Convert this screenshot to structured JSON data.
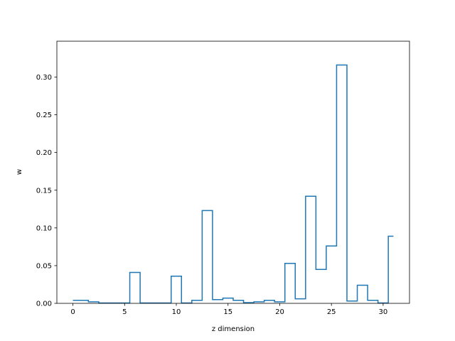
{
  "chart_data": {
    "type": "line",
    "drawstyle": "steps-mid",
    "xlabel": "z dimension",
    "ylabel": "w",
    "xlim": [
      -1.55,
      32.55
    ],
    "ylim": [
      0,
      0.3475
    ],
    "xticks": [
      0,
      5,
      10,
      15,
      20,
      25,
      30
    ],
    "yticks": [
      0.0,
      0.05,
      0.1,
      0.15,
      0.2,
      0.25,
      0.3
    ],
    "ytick_labels": [
      "0.00",
      "0.05",
      "0.10",
      "0.15",
      "0.20",
      "0.25",
      "0.30"
    ],
    "grid": false,
    "color": "#1f77b4",
    "x": [
      0,
      1,
      2,
      3,
      4,
      5,
      6,
      7,
      8,
      9,
      10,
      11,
      12,
      13,
      14,
      15,
      16,
      17,
      18,
      19,
      20,
      21,
      22,
      23,
      24,
      25,
      26,
      27,
      28,
      29,
      30,
      31
    ],
    "y": [
      0.004,
      0.004,
      0.002,
      0.0005,
      0.0005,
      0.0005,
      0.041,
      0.0005,
      0.0005,
      0.0005,
      0.036,
      0.0005,
      0.004,
      0.123,
      0.005,
      0.007,
      0.004,
      0.001,
      0.002,
      0.004,
      0.002,
      0.053,
      0.006,
      0.142,
      0.045,
      0.076,
      0.316,
      0.003,
      0.024,
      0.004,
      0.0005,
      0.089
    ]
  }
}
